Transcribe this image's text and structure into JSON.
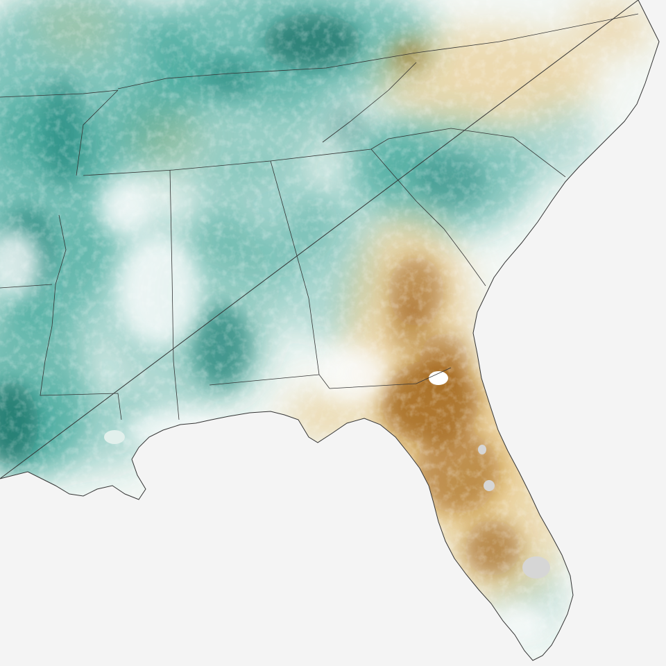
{
  "map": {
    "background_color": "#f4f4f4",
    "wet_color": "#2a9d8f",
    "wet_deep_color": "#0b6b61",
    "dry_color": "#e8c27a",
    "dry_deep_color": "#9a5b0c",
    "neutral_color": "#f2f7f4",
    "border_color": "#333333",
    "nodata_color": "#d6d6d6"
  }
}
